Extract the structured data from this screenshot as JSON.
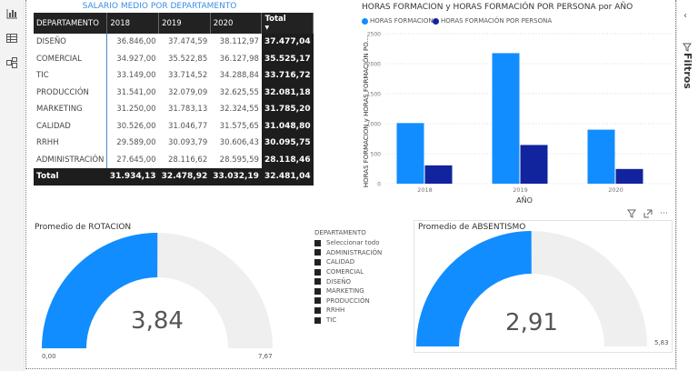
{
  "sidebar": {
    "items": [
      {
        "icon": "report-icon"
      },
      {
        "icon": "data-table-icon"
      },
      {
        "icon": "model-icon"
      }
    ]
  },
  "filters": {
    "label": "Filtros",
    "collapse_icon": "chevron-left-icon",
    "icon": "filter-icon"
  },
  "table": {
    "title": "SALARIO MEDIO POR DEPARTAMENTO",
    "headers": [
      "DEPARTAMENTO",
      "2018",
      "2019",
      "2020",
      "Total"
    ],
    "sort_indicator": "sort-desc-icon",
    "rows": [
      [
        "DISEÑO",
        "36.846,00",
        "37.474,59",
        "38.112,97",
        "37.477,04"
      ],
      [
        "COMERCIAL",
        "34.927,00",
        "35.522,85",
        "36.127,98",
        "35.525,17"
      ],
      [
        "TIC",
        "33.149,00",
        "33.714,52",
        "34.288,84",
        "33.716,72"
      ],
      [
        "PRODUCCIÓN",
        "31.541,00",
        "32.079,09",
        "32.625,55",
        "32.081,18"
      ],
      [
        "MARKETING",
        "31.250,00",
        "31.783,13",
        "32.324,55",
        "31.785,20"
      ],
      [
        "CALIDAD",
        "30.526,00",
        "31.046,77",
        "31.575,65",
        "31.048,80"
      ],
      [
        "RRHH",
        "29.589,00",
        "30.093,79",
        "30.606,43",
        "30.095,75"
      ],
      [
        "ADMINISTRACIÓN",
        "27.645,00",
        "28.116,62",
        "28.595,59",
        "28.118,46"
      ]
    ],
    "total": [
      "Total",
      "31.934,13",
      "32.478,92",
      "33.032,19",
      "32.481,04"
    ]
  },
  "chart_data": {
    "type": "bar",
    "title": "HORAS FORMACION y HORAS FORMACIÓN POR PERSONA por AÑO",
    "xlabel": "AÑO",
    "ylabel": "HORAS FORMACION y HORAS FORMACIÓN PO...",
    "categories": [
      "2018",
      "2019",
      "2020"
    ],
    "ylim": [
      0,
      2500
    ],
    "yticks": [
      0,
      500,
      1000,
      1500,
      2000,
      2500
    ],
    "grid": true,
    "legend_position": "top-left",
    "series": [
      {
        "name": "HORAS FORMACION",
        "color": "#118dff",
        "values": [
          1010,
          2175,
          900
        ]
      },
      {
        "name": "HORAS FORMACIÓN POR PERSONA",
        "color": "#12239e",
        "values": [
          305,
          645,
          245
        ]
      }
    ]
  },
  "visual_header": {
    "icons": [
      "filter-icon",
      "focus-mode-icon",
      "more-options-icon"
    ]
  },
  "gauge_rotacion": {
    "title": "Promedio de ROTACION",
    "value": 3.84,
    "value_label": "3,84",
    "min_label": "0,00",
    "max_label": "7,67",
    "min": 0,
    "max": 7.67,
    "fill": "#118dff",
    "track": "#efefef"
  },
  "gauge_absentismo": {
    "title": "Promedio de ABSENTISMO",
    "value": 2.91,
    "value_label": "2,91",
    "min_label": "0,00",
    "max_label": "5,83",
    "min": 0,
    "max": 5.83,
    "fill": "#118dff",
    "track": "#efefef"
  },
  "slicer": {
    "title": "DEPARTAMENTO",
    "items": [
      "Seleccionar todo",
      "ADMINISTRACIÓN",
      "CALIDAD",
      "COMERCIAL",
      "DISEÑO",
      "MARKETING",
      "PRODUCCIÓN",
      "RRHH",
      "TIC"
    ]
  }
}
